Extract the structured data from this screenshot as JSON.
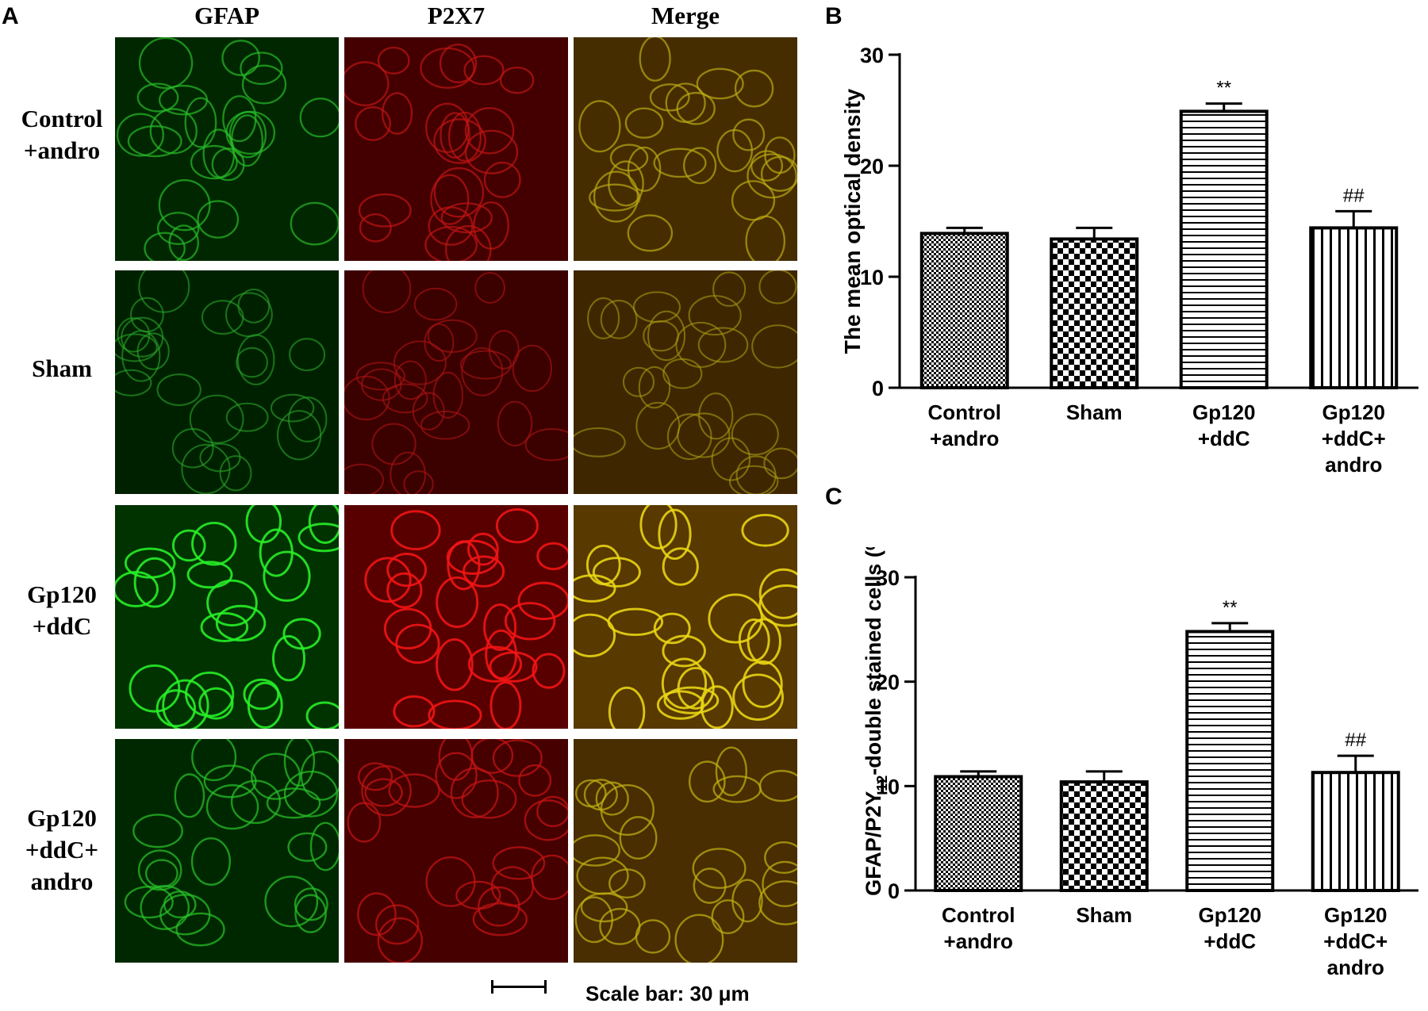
{
  "panel_labels": [
    "A",
    "B",
    "C"
  ],
  "micrograph": {
    "columns": [
      "GFAP",
      "P2X7",
      "Merge"
    ],
    "rows": [
      {
        "lines": [
          "Control",
          "+andro"
        ],
        "brightness": 0.55
      },
      {
        "lines": [
          "Sham"
        ],
        "brightness": 0.38
      },
      {
        "lines": [
          "Gp120",
          "+ddC"
        ],
        "brightness": 0.95
      },
      {
        "lines": [
          "Gp120",
          "+ddC+",
          "andro"
        ],
        "brightness": 0.6
      }
    ],
    "scale_text": "Scale bar: 30 μm"
  },
  "chart_data": [
    {
      "type": "bar",
      "panel": "B",
      "categories": [
        [
          "Control",
          "+andro"
        ],
        [
          "Sham"
        ],
        [
          "Gp120",
          "+ddC"
        ],
        [
          "Gp120",
          "+ddC+",
          "andro"
        ]
      ],
      "values": [
        13.9,
        13.4,
        24.9,
        14.4
      ],
      "errors": [
        0.5,
        1.0,
        0.7,
        1.5
      ],
      "annotations": [
        "",
        "",
        "**",
        "##"
      ],
      "patterns": [
        "checker-fine",
        "checker-coarse",
        "horizontal-lines",
        "vertical-lines"
      ],
      "ylabel": "The mean optical density",
      "ylim": [
        0,
        30
      ],
      "yticks": [
        0,
        10,
        20,
        30
      ]
    },
    {
      "type": "bar",
      "panel": "C",
      "categories": [
        [
          "Control",
          "+andro"
        ],
        [
          "Sham"
        ],
        [
          "Gp120",
          "+ddC"
        ],
        [
          "Gp120",
          "+ddC+",
          "andro"
        ]
      ],
      "values": [
        10.9,
        10.4,
        24.8,
        11.3
      ],
      "errors": [
        0.5,
        1.0,
        0.8,
        1.6
      ],
      "annotations": [
        "",
        "",
        "**",
        "##"
      ],
      "patterns": [
        "checker-fine",
        "checker-coarse",
        "horizontal-lines",
        "vertical-lines"
      ],
      "ylabel_parts": [
        "GFAP/P2Y",
        "12",
        "-double stained cells (%)"
      ],
      "ylim": [
        0,
        30
      ],
      "yticks": [
        0,
        10,
        20,
        30
      ]
    }
  ]
}
